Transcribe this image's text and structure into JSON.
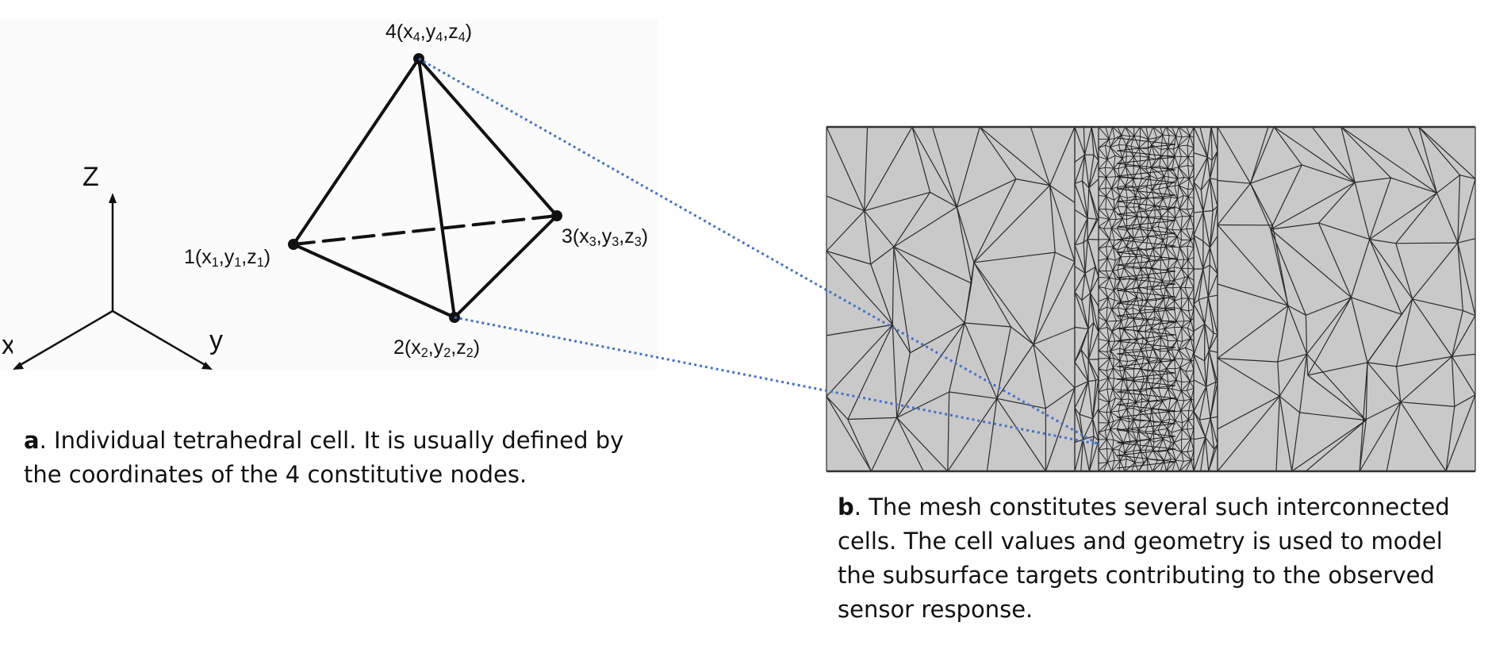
{
  "panel_a": {
    "axes": {
      "z": "Z",
      "y": "y",
      "x": "x"
    },
    "nodes": [
      {
        "id": "1",
        "label": "1(x1,y1,z1)",
        "index": "1",
        "x": "x",
        "y": "y",
        "z": "z"
      },
      {
        "id": "2",
        "label": "2(x2,y2,z2)",
        "index": "2",
        "x": "x",
        "y": "y",
        "z": "z"
      },
      {
        "id": "3",
        "label": "3(x3,y3,z3)",
        "index": "3",
        "x": "x",
        "y": "y",
        "z": "z"
      },
      {
        "id": "4",
        "label": "4(x4,y4,z4)",
        "index": "4",
        "x": "x",
        "y": "y",
        "z": "z"
      }
    ],
    "caption": {
      "letter": "a",
      "text": ". Individual tetrahedral cell. It is usually defined by the coordinates of the 4 constitutive nodes."
    }
  },
  "panel_b": {
    "caption": {
      "letter": "b",
      "text": ". The mesh constitutes several such interconnected cells. The cell values and geometry is used to model the subsurface targets contributing to the observed sensor response."
    }
  },
  "colors": {
    "connector": "#4472c4",
    "mesh_fill": "#c9c9c9",
    "mesh_line": "#2b2b2b",
    "ink": "#111111"
  }
}
